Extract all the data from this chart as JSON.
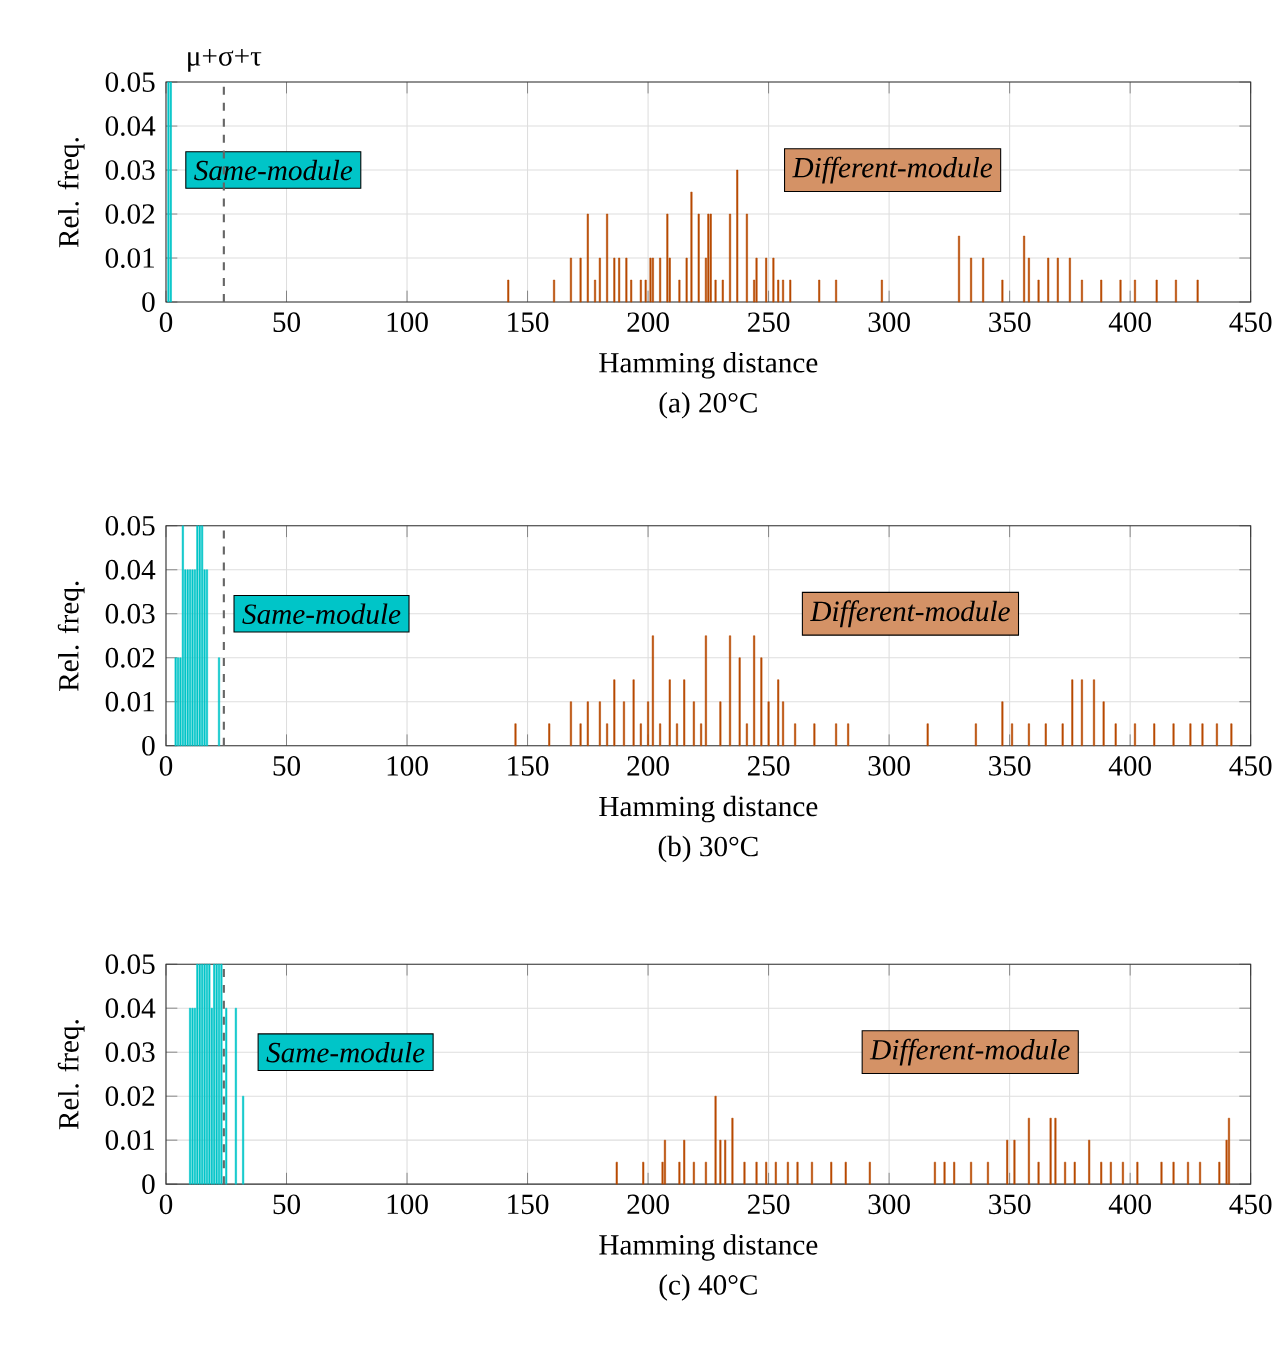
{
  "chart_data": [
    {
      "type": "bar",
      "xlabel": "Hamming distance",
      "ylabel": "Rel. freq.",
      "xlim": [
        0,
        450
      ],
      "ylim": [
        0,
        0.05
      ],
      "xticks": [
        0,
        50,
        100,
        150,
        200,
        250,
        300,
        350,
        400,
        450
      ],
      "yticks": [
        0,
        0.01,
        0.02,
        0.03,
        0.04,
        0.05
      ],
      "grid": true,
      "ref_lines": [
        {
          "axis": "x",
          "value": 24,
          "label": "μ+σ+τ",
          "line_style": "dashed"
        }
      ],
      "annotations": [
        "(a) 20°C"
      ],
      "series": [
        {
          "name": "Same-module",
          "color": "#00c5c8",
          "x": [
            1,
            2
          ],
          "values": [
            0.05,
            0.05
          ]
        },
        {
          "name": "Different-module",
          "color": "#b84a00",
          "x": [
            142,
            161,
            168,
            172,
            175,
            178,
            180,
            183,
            186,
            188,
            191,
            193,
            197,
            199,
            201,
            202,
            205,
            208,
            209,
            213,
            216,
            218,
            221,
            224,
            225,
            226,
            228,
            231,
            234,
            237,
            241,
            244,
            245,
            249,
            252,
            254,
            256,
            259,
            271,
            278,
            297,
            329,
            334,
            339,
            347,
            356,
            358,
            362,
            366,
            370,
            375,
            380,
            388,
            396,
            402,
            411,
            419,
            428
          ],
          "values": [
            0.005,
            0.005,
            0.01,
            0.01,
            0.02,
            0.005,
            0.01,
            0.02,
            0.01,
            0.01,
            0.01,
            0.005,
            0.005,
            0.005,
            0.01,
            0.01,
            0.01,
            0.02,
            0.01,
            0.005,
            0.01,
            0.025,
            0.02,
            0.01,
            0.02,
            0.02,
            0.005,
            0.005,
            0.02,
            0.03,
            0.02,
            0.005,
            0.01,
            0.01,
            0.01,
            0.005,
            0.005,
            0.005,
            0.005,
            0.005,
            0.005,
            0.015,
            0.01,
            0.01,
            0.005,
            0.015,
            0.01,
            0.005,
            0.01,
            0.01,
            0.01,
            0.005,
            0.005,
            0.005,
            0.005,
            0.005,
            0.005,
            0.005
          ]
        }
      ]
    },
    {
      "type": "bar",
      "xlabel": "Hamming distance",
      "ylabel": "Rel. freq.",
      "xlim": [
        0,
        450
      ],
      "ylim": [
        0,
        0.05
      ],
      "xticks": [
        0,
        50,
        100,
        150,
        200,
        250,
        300,
        350,
        400,
        450
      ],
      "yticks": [
        0,
        0.01,
        0.02,
        0.03,
        0.04,
        0.05
      ],
      "grid": true,
      "ref_lines": [
        {
          "axis": "x",
          "value": 24,
          "line_style": "dashed"
        }
      ],
      "annotations": [
        "(b) 30°C"
      ],
      "series": [
        {
          "name": "Same-module",
          "color": "#00c5c8",
          "x": [
            4,
            5,
            6,
            7,
            8,
            9,
            10,
            11,
            12,
            13,
            14,
            15,
            16,
            17,
            22
          ],
          "values": [
            0.02,
            0.02,
            0.02,
            0.05,
            0.04,
            0.04,
            0.04,
            0.04,
            0.04,
            0.05,
            0.05,
            0.05,
            0.04,
            0.04,
            0.02
          ]
        },
        {
          "name": "Different-module",
          "color": "#b84a00",
          "x": [
            145,
            159,
            168,
            172,
            175,
            180,
            183,
            186,
            190,
            194,
            197,
            200,
            202,
            205,
            209,
            212,
            215,
            219,
            222,
            224,
            230,
            234,
            238,
            241,
            244,
            247,
            250,
            254,
            256,
            261,
            269,
            278,
            283,
            316,
            336,
            347,
            351,
            358,
            365,
            372,
            376,
            380,
            385,
            389,
            394,
            402,
            410,
            418,
            425,
            430,
            436,
            442
          ],
          "values": [
            0.005,
            0.005,
            0.01,
            0.005,
            0.01,
            0.01,
            0.005,
            0.015,
            0.01,
            0.015,
            0.005,
            0.01,
            0.025,
            0.005,
            0.015,
            0.005,
            0.015,
            0.01,
            0.005,
            0.025,
            0.01,
            0.025,
            0.02,
            0.005,
            0.025,
            0.02,
            0.01,
            0.015,
            0.01,
            0.005,
            0.005,
            0.005,
            0.005,
            0.005,
            0.005,
            0.01,
            0.005,
            0.005,
            0.005,
            0.005,
            0.015,
            0.015,
            0.015,
            0.01,
            0.005,
            0.005,
            0.005,
            0.005,
            0.005,
            0.005,
            0.005,
            0.005
          ]
        }
      ]
    },
    {
      "type": "bar",
      "xlabel": "Hamming distance",
      "ylabel": "Rel. freq.",
      "xlim": [
        0,
        450
      ],
      "ylim": [
        0,
        0.05
      ],
      "xticks": [
        0,
        50,
        100,
        150,
        200,
        250,
        300,
        350,
        400,
        450
      ],
      "yticks": [
        0,
        0.01,
        0.02,
        0.03,
        0.04,
        0.05
      ],
      "grid": true,
      "ref_lines": [
        {
          "axis": "x",
          "value": 24,
          "line_style": "dashed"
        }
      ],
      "annotations": [
        "(c) 40°C"
      ],
      "series": [
        {
          "name": "Same-module",
          "color": "#00c5c8",
          "x": [
            10,
            11,
            12,
            13,
            14,
            15,
            16,
            17,
            18,
            19,
            20,
            21,
            22,
            23,
            25,
            29,
            32
          ],
          "values": [
            0.04,
            0.04,
            0.04,
            0.05,
            0.05,
            0.05,
            0.05,
            0.05,
            0.05,
            0.04,
            0.05,
            0.05,
            0.05,
            0.05,
            0.04,
            0.04,
            0.02
          ]
        },
        {
          "name": "Different-module",
          "color": "#b84a00",
          "x": [
            187,
            198,
            206,
            207,
            213,
            215,
            219,
            224,
            228,
            230,
            232,
            235,
            240,
            245,
            249,
            253,
            258,
            262,
            268,
            276,
            282,
            292,
            319,
            323,
            327,
            334,
            341,
            349,
            352,
            358,
            362,
            367,
            369,
            373,
            377,
            383,
            388,
            392,
            397,
            403,
            413,
            418,
            424,
            429,
            437,
            440,
            441
          ],
          "values": [
            0.005,
            0.005,
            0.005,
            0.01,
            0.005,
            0.01,
            0.005,
            0.005,
            0.02,
            0.01,
            0.01,
            0.015,
            0.005,
            0.005,
            0.005,
            0.005,
            0.005,
            0.005,
            0.005,
            0.005,
            0.005,
            0.005,
            0.005,
            0.005,
            0.005,
            0.005,
            0.005,
            0.01,
            0.01,
            0.015,
            0.005,
            0.015,
            0.015,
            0.005,
            0.005,
            0.01,
            0.005,
            0.005,
            0.005,
            0.005,
            0.005,
            0.005,
            0.005,
            0.005,
            0.005,
            0.01,
            0.015
          ]
        }
      ]
    }
  ]
}
